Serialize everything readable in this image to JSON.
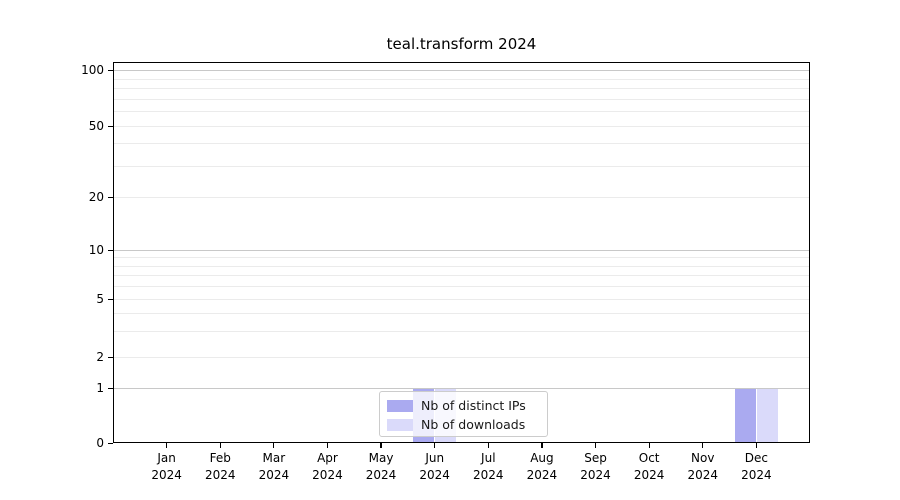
{
  "chart_data": {
    "type": "bar",
    "title": "teal.transform 2024",
    "categories": [
      {
        "label": "Jan",
        "sublabel": "2024"
      },
      {
        "label": "Feb",
        "sublabel": "2024"
      },
      {
        "label": "Mar",
        "sublabel": "2024"
      },
      {
        "label": "Apr",
        "sublabel": "2024"
      },
      {
        "label": "May",
        "sublabel": "2024"
      },
      {
        "label": "Jun",
        "sublabel": "2024"
      },
      {
        "label": "Jul",
        "sublabel": "2024"
      },
      {
        "label": "Aug",
        "sublabel": "2024"
      },
      {
        "label": "Sep",
        "sublabel": "2024"
      },
      {
        "label": "Oct",
        "sublabel": "2024"
      },
      {
        "label": "Nov",
        "sublabel": "2024"
      },
      {
        "label": "Dec",
        "sublabel": "2024"
      }
    ],
    "series": [
      {
        "name": "Nb of distinct IPs",
        "color": "#aaaaf0",
        "values": [
          0,
          0,
          0,
          0,
          0,
          1,
          0,
          0,
          0,
          0,
          0,
          1
        ]
      },
      {
        "name": "Nb of downloads",
        "color": "#dadafa",
        "values": [
          0,
          0,
          0,
          0,
          0,
          1,
          0,
          0,
          0,
          0,
          0,
          1
        ]
      }
    ],
    "xlabel": "",
    "ylabel": "",
    "yscale": "symlog",
    "ylim": [
      0,
      110
    ],
    "yticks": [
      0,
      1,
      2,
      5,
      10,
      20,
      50,
      100
    ],
    "major_ticks": [
      1,
      10,
      100
    ],
    "minor_grid_values": [
      3,
      4,
      6,
      7,
      8,
      9,
      30,
      40,
      60,
      70,
      80,
      90
    ],
    "grid": true,
    "legend_position": "lower center inside plot",
    "colors": {
      "grid_major": "#c8c8c8",
      "grid_minor": "#ebebeb",
      "axis": "#000000",
      "background": "#ffffff"
    }
  }
}
